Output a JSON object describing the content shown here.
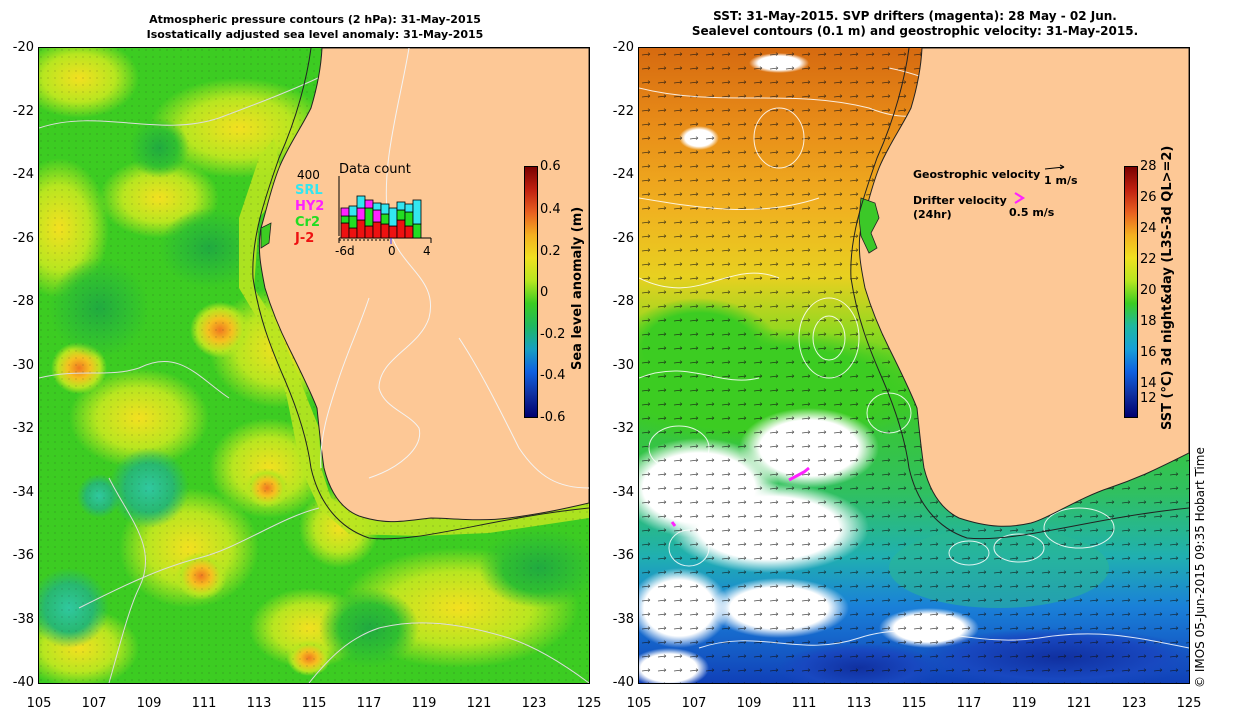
{
  "left": {
    "title_line1": "Atmospheric pressure contours (2 hPa): 31-May-2015",
    "title_line2": "Isostatically adjusted sea level anomaly: 31-May-2015",
    "colorbar": {
      "label": "Sea level anomaly (m)",
      "ticks": [
        "0.6",
        "0.4",
        "0.2",
        "0",
        "-0.2",
        "-0.4",
        "-0.6"
      ]
    },
    "inset": {
      "title": "Data count",
      "ymax": "400",
      "legend": [
        {
          "name": "SRL",
          "color": "#33e6f0"
        },
        {
          "name": "HY2",
          "color": "#ff22ff"
        },
        {
          "name": "Cr2",
          "color": "#22dd22"
        },
        {
          "name": "J-2",
          "color": "#ee1111"
        }
      ],
      "xticks": [
        "-6d",
        "0",
        "4"
      ]
    }
  },
  "right": {
    "title_line1": "SST: 31-May-2015. SVP drifters (magenta): 28 May - 02 Jun.",
    "title_line2": "Sealevel contours (0.1 m) and geostrophic velocity: 31-May-2015.",
    "colorbar": {
      "label": "SST (°C) 3d night&day (L3S-3d QL>=2)",
      "ticks": [
        "28",
        "26",
        "24",
        "22",
        "20",
        "18",
        "16",
        "14",
        "12"
      ]
    },
    "legend": {
      "geo_label": "Geostrophic velocity",
      "geo_scale": "1 m/s",
      "drifter_label": "Drifter velocity",
      "drifter_sub": "(24hr)",
      "drifter_scale": "0.5 m/s"
    }
  },
  "axes": {
    "y_labels": [
      "-20",
      "-22",
      "-24",
      "-26",
      "-28",
      "-30",
      "-32",
      "-34",
      "-36",
      "-38",
      "-40"
    ],
    "x_labels": [
      "105",
      "107",
      "109",
      "111",
      "113",
      "115",
      "117",
      "119",
      "121",
      "123",
      "125"
    ]
  },
  "copyright": "© IMOS 05-Jun-2015 09:35 Hobart Time",
  "colors": {
    "land": "#fdc896",
    "sla_green": "#3ccc22",
    "sla_yellow": "#b8e620",
    "sst_orange": "#e8a020",
    "sst_blue": "#1a6ad8"
  }
}
